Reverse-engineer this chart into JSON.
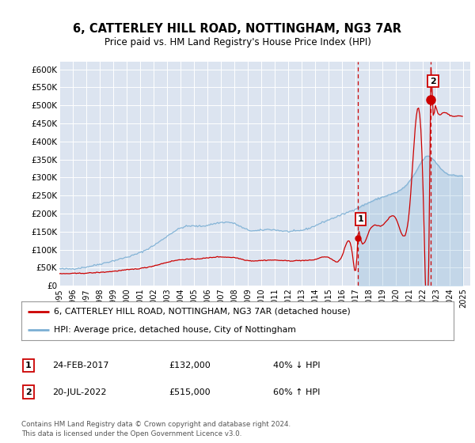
{
  "title": "6, CATTERLEY HILL ROAD, NOTTINGHAM, NG3 7AR",
  "subtitle": "Price paid vs. HM Land Registry's House Price Index (HPI)",
  "ylim": [
    0,
    620000
  ],
  "yticks": [
    0,
    50000,
    100000,
    150000,
    200000,
    250000,
    300000,
    350000,
    400000,
    450000,
    500000,
    550000,
    600000
  ],
  "ytick_labels": [
    "£0",
    "£50K",
    "£100K",
    "£150K",
    "£200K",
    "£250K",
    "£300K",
    "£350K",
    "£400K",
    "£450K",
    "£500K",
    "£550K",
    "£600K"
  ],
  "xlim_start": 1995.0,
  "xlim_end": 2025.5,
  "background_color": "#ffffff",
  "plot_bg_color": "#dce4f0",
  "grid_color": "#ffffff",
  "transaction1_x": 2017.15,
  "transaction1_y": 132000,
  "transaction2_x": 2022.54,
  "transaction2_y": 515000,
  "sale_color": "#cc0000",
  "hpi_color": "#7bafd4",
  "legend_sale_label": "6, CATTERLEY HILL ROAD, NOTTINGHAM, NG3 7AR (detached house)",
  "legend_hpi_label": "HPI: Average price, detached house, City of Nottingham",
  "note1_label": "1",
  "note1_date": "24-FEB-2017",
  "note1_price": "£132,000",
  "note1_hpi": "40% ↓ HPI",
  "note2_label": "2",
  "note2_date": "20-JUL-2022",
  "note2_price": "£515,000",
  "note2_hpi": "60% ↑ HPI",
  "footer": "Contains HM Land Registry data © Crown copyright and database right 2024.\nThis data is licensed under the Open Government Licence v3.0."
}
